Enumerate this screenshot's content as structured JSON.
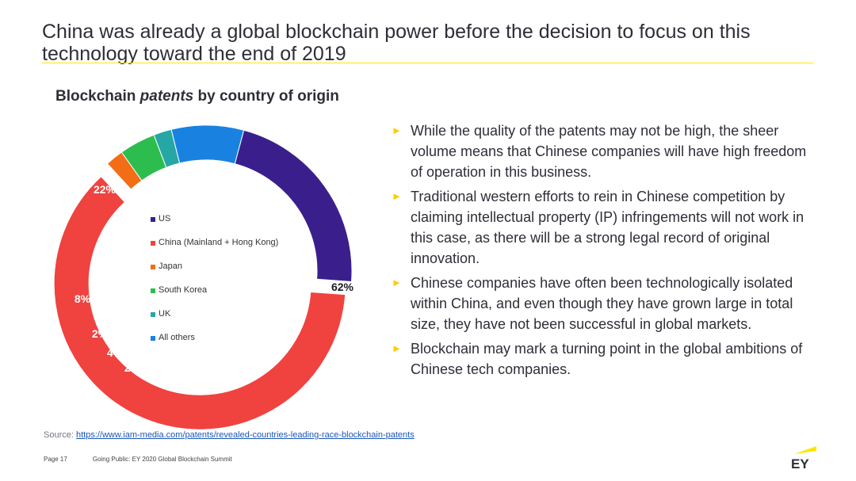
{
  "slide": {
    "title": "China was already a global blockchain power before the decision to focus on this technology toward the end of 2019"
  },
  "chart_heading": {
    "prefix": "Blockchain ",
    "emphasis": "patents",
    "suffix": " by country of origin"
  },
  "colors": {
    "accent_yellow": "#ffe600",
    "text_dark": "#2e2e38",
    "link_blue": "#1a55b8"
  },
  "chart_data": {
    "type": "pie",
    "variant": "donut",
    "exploded_slice": "China (Mainland + Hong Kong)",
    "legend_position": "inside-center",
    "slices": [
      {
        "label": "US",
        "value": 22,
        "display": "22%",
        "color": "#3a1f8c"
      },
      {
        "label": "China (Mainland + Hong Kong)",
        "value": 62,
        "display": "62%",
        "color": "#f0423f"
      },
      {
        "label": "Japan",
        "value": 2,
        "display": "2%",
        "color": "#f36c16"
      },
      {
        "label": "South Korea",
        "value": 4,
        "display": "4%",
        "color": "#2dbd4e"
      },
      {
        "label": "UK",
        "value": 2,
        "display": "2%",
        "color": "#27a6a6"
      },
      {
        "label": "All others",
        "value": 8,
        "display": "8%",
        "color": "#1982e0"
      }
    ]
  },
  "bullets": [
    "While the quality of the patents may not be high, the sheer volume means that Chinese companies will have high freedom of operation in this business.",
    "Traditional western efforts to rein in Chinese competition by claiming intellectual property (IP) infringements will not work in this case, as there will be a strong legal record of original innovation.",
    "Chinese companies have often been technologically isolated within China, and even though they have grown large in total size, they have not been successful in global markets.",
    "Blockchain may mark a turning point in the global ambitions of Chinese tech companies."
  ],
  "bullet_marker": "►",
  "source": {
    "label": "Source: ",
    "url_text": "https://www.iam-media.com/patents/revealed-countries-leading-race-blockchain-patents"
  },
  "footer": {
    "page_label": "Page 17",
    "doc_title": "Going Public: EY 2020 Global Blockchain Summit"
  },
  "logo": {
    "text": "EY",
    "icon": "ey-logo-icon"
  }
}
